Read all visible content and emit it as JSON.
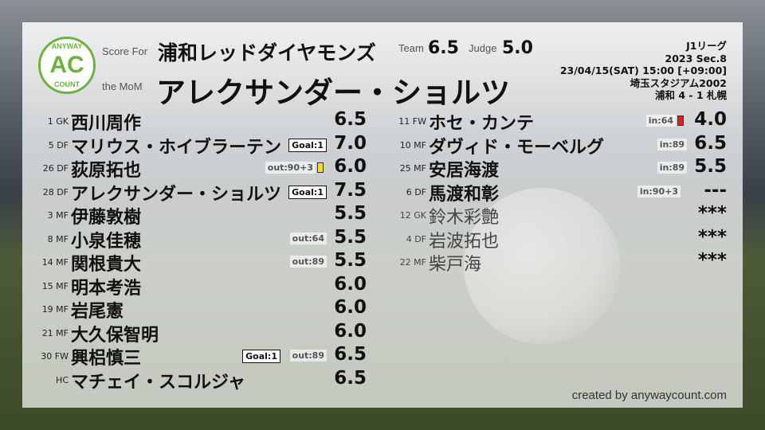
{
  "header": {
    "score_for_label": "Score For",
    "mom_label": "the MoM",
    "team": "浦和レッドダイヤモンズ",
    "mom_player": "アレクサンダー・ショルツ",
    "team_label": "Team",
    "team_score": "6.5",
    "judge_label": "Judge",
    "judge_score": "5.0",
    "logo": {
      "top": "ANYWAY",
      "main": "AC",
      "bottom": "COUNT",
      "color": "#6cb33f"
    }
  },
  "match": {
    "league": "J1リーグ",
    "section": "2023 Sec.8",
    "datetime": "23/04/15(SAT) 15:00 [+09:00]",
    "stadium": "埼玉スタジアム2002",
    "result": "浦和 4 - 1 札幌"
  },
  "starters": [
    {
      "pos": "1 GK",
      "name": "西川周作",
      "score": "6.5"
    },
    {
      "pos": "5 DF",
      "name": "マリウス・ホイブラーテン",
      "score": "7.0",
      "goal": "Goal:1"
    },
    {
      "pos": "26 DF",
      "name": "荻原拓也",
      "score": "6.0",
      "sub": "out:90+3",
      "card": "#f0e020"
    },
    {
      "pos": "28 DF",
      "name": "アレクサンダー・ショルツ",
      "score": "7.5",
      "goal": "Goal:1"
    },
    {
      "pos": "3 MF",
      "name": "伊藤敦樹",
      "score": "5.5"
    },
    {
      "pos": "8 MF",
      "name": "小泉佳穂",
      "score": "5.5",
      "sub": "out:64"
    },
    {
      "pos": "14 MF",
      "name": "関根貴大",
      "score": "5.5",
      "sub": "out:89"
    },
    {
      "pos": "15 MF",
      "name": "明本考浩",
      "score": "6.0"
    },
    {
      "pos": "19 MF",
      "name": "岩尾憲",
      "score": "6.0"
    },
    {
      "pos": "21 MF",
      "name": "大久保智明",
      "score": "6.0"
    },
    {
      "pos": "30 FW",
      "name": "興梠慎三",
      "score": "6.5",
      "goal": "Goal:1",
      "sub": "out:89"
    },
    {
      "pos": "HC",
      "name": "マチェイ・スコルジャ",
      "score": "6.5"
    }
  ],
  "subs": [
    {
      "pos": "11 FW",
      "name": "ホセ・カンテ",
      "score": "4.0",
      "sub": "in:64",
      "card": "#e02020"
    },
    {
      "pos": "10 MF",
      "name": "ダヴィド・モーベルグ",
      "score": "6.5",
      "sub": "in:89"
    },
    {
      "pos": "25 MF",
      "name": "安居海渡",
      "score": "5.5",
      "sub": "in:89"
    },
    {
      "pos": "6 DF",
      "name": "馬渡和彰",
      "score": "---",
      "sub": "in:90+3"
    },
    {
      "pos": "12 GK",
      "name": "鈴木彩艶",
      "score": "***",
      "unused": true
    },
    {
      "pos": "4 DF",
      "name": "岩波拓也",
      "score": "***",
      "unused": true
    },
    {
      "pos": "22 MF",
      "name": "柴戸海",
      "score": "***",
      "unused": true
    }
  ],
  "credit": "created by anywaycount.com"
}
